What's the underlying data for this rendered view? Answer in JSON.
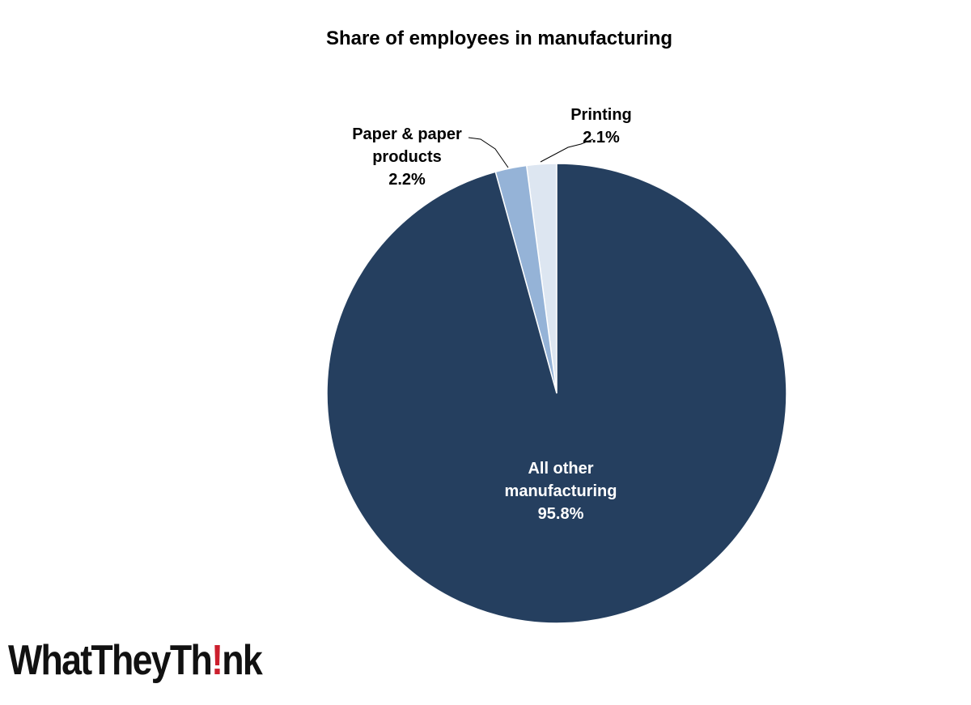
{
  "chart_data": {
    "type": "pie",
    "title": "Share of employees in manufacturing",
    "start_angle_deg": 0,
    "direction": "counterclockwise",
    "slices": [
      {
        "label_lines": [
          "Printing"
        ],
        "value": 2.1,
        "value_label": "2.1%",
        "color": "#dde6f1",
        "label_color": "#000000"
      },
      {
        "label_lines": [
          "Paper & paper",
          "products"
        ],
        "value": 2.2,
        "value_label": "2.2%",
        "color": "#95b3d7",
        "label_color": "#000000"
      },
      {
        "label_lines": [
          "All other",
          "manufacturing"
        ],
        "value": 95.8,
        "value_label": "95.8%",
        "color": "#253f5f",
        "label_color": "#ffffff"
      }
    ]
  },
  "logo": {
    "text_before": "WhatTheyTh",
    "text_mark": "!",
    "text_after": "nk"
  }
}
